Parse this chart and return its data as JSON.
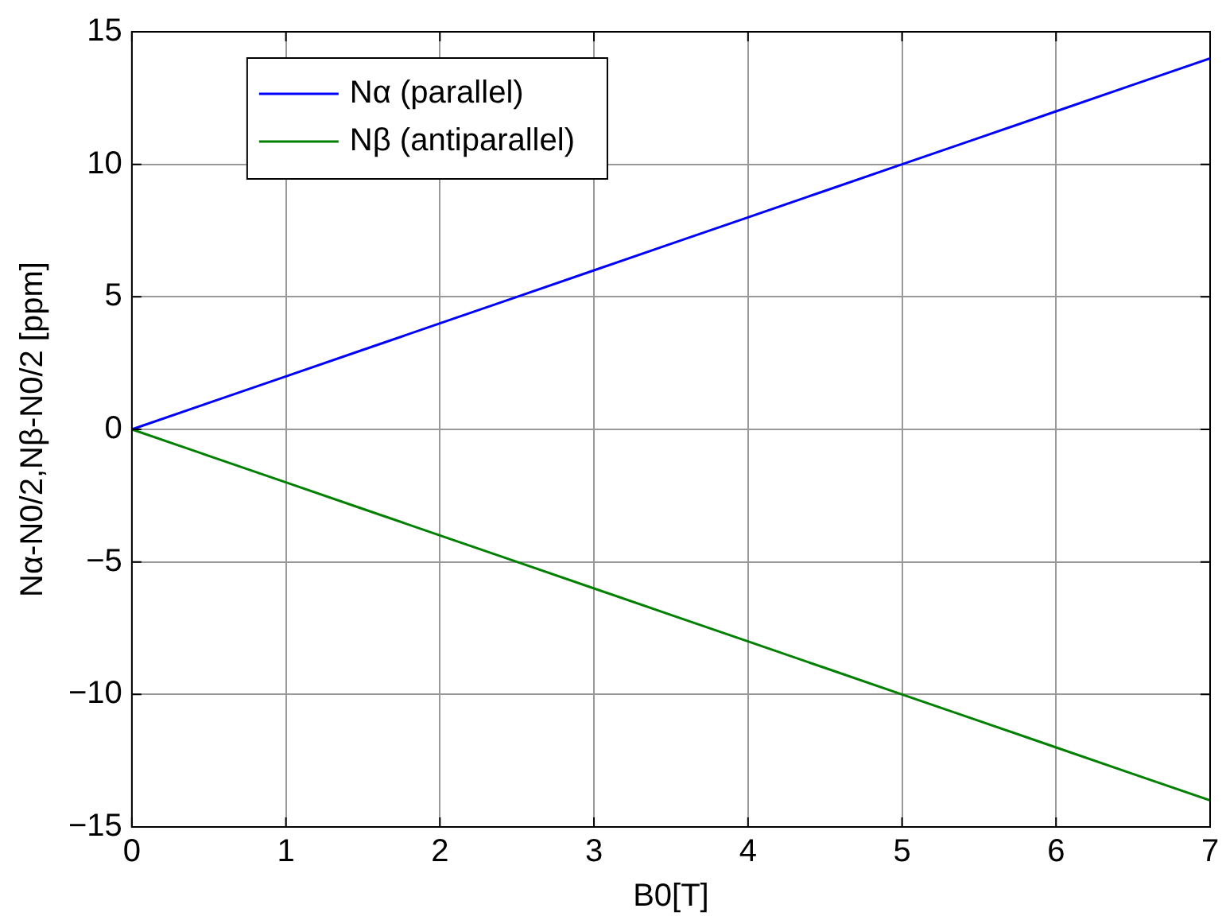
{
  "chart_data": {
    "type": "line",
    "xlabel": "B0[T]",
    "ylabel": "Nα-N0/2,Nβ-N0/2 [ppm]",
    "x": [
      0,
      0.5,
      1,
      1.5,
      2,
      2.5,
      3,
      3.5,
      4,
      4.5,
      5,
      5.5,
      6,
      6.5,
      7
    ],
    "series": [
      {
        "name": "Nα (parallel)",
        "color": "#0000ff",
        "values": [
          0,
          1,
          2,
          3,
          4,
          5,
          6,
          7,
          8,
          9,
          10,
          11,
          12,
          13,
          14
        ]
      },
      {
        "name": "Nβ (antiparallel)",
        "color": "#008000",
        "values": [
          0,
          -1,
          -2,
          -3,
          -4,
          -5,
          -6,
          -7,
          -8,
          -9,
          -10,
          -11,
          -12,
          -13,
          -14
        ]
      }
    ],
    "xlim": [
      0,
      7
    ],
    "xticks": [
      0,
      1,
      2,
      3,
      4,
      5,
      6,
      7
    ],
    "ylim": [
      -15,
      15
    ],
    "yticks": [
      -15,
      -10,
      -5,
      0,
      5,
      10,
      15
    ],
    "grid": true,
    "legend": "top left",
    "marker": "none",
    "line_style": "solid"
  }
}
